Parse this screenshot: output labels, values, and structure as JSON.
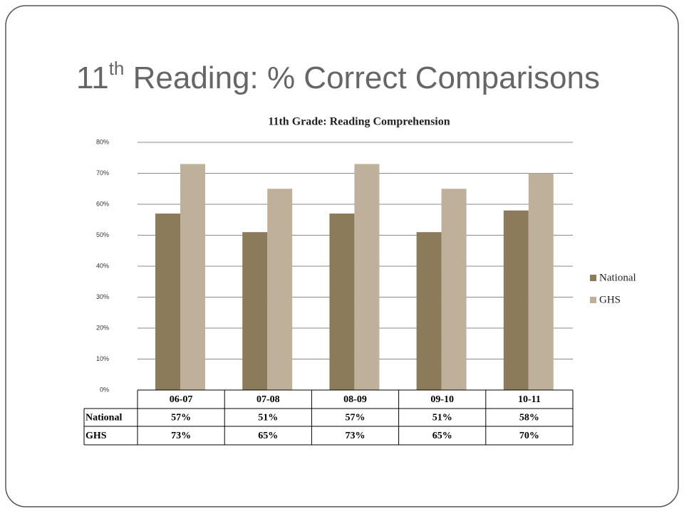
{
  "slide": {
    "title_number": "11",
    "title_superscript": "th",
    "title_text": "Reading: % Correct Comparisons"
  },
  "chart_data": {
    "type": "bar",
    "title": "11th Grade: Reading Comprehension",
    "categories": [
      "06-07",
      "07-08",
      "08-09",
      "09-10",
      "10-11"
    ],
    "series": [
      {
        "name": "National",
        "color": "#8c7b5b",
        "values": [
          57,
          51,
          57,
          51,
          58
        ],
        "value_labels": [
          "57%",
          "51%",
          "57%",
          "51%",
          "58%"
        ]
      },
      {
        "name": "GHS",
        "color": "#bfb09b",
        "values": [
          73,
          65,
          73,
          65,
          70
        ],
        "value_labels": [
          "73%",
          "65%",
          "73%",
          "65%",
          "70%"
        ]
      }
    ],
    "ylim": [
      0,
      80
    ],
    "yticks": [
      {
        "value": 0,
        "label": "0%"
      },
      {
        "value": 10,
        "label": "10%"
      },
      {
        "value": 20,
        "label": "20%"
      },
      {
        "value": 30,
        "label": "30%"
      },
      {
        "value": 40,
        "label": "40%"
      },
      {
        "value": 50,
        "label": "50%"
      },
      {
        "value": 60,
        "label": "60%"
      },
      {
        "value": 70,
        "label": "70%"
      },
      {
        "value": 80,
        "label": "80%"
      }
    ],
    "grid": true,
    "legend": "right",
    "data_table": true
  }
}
